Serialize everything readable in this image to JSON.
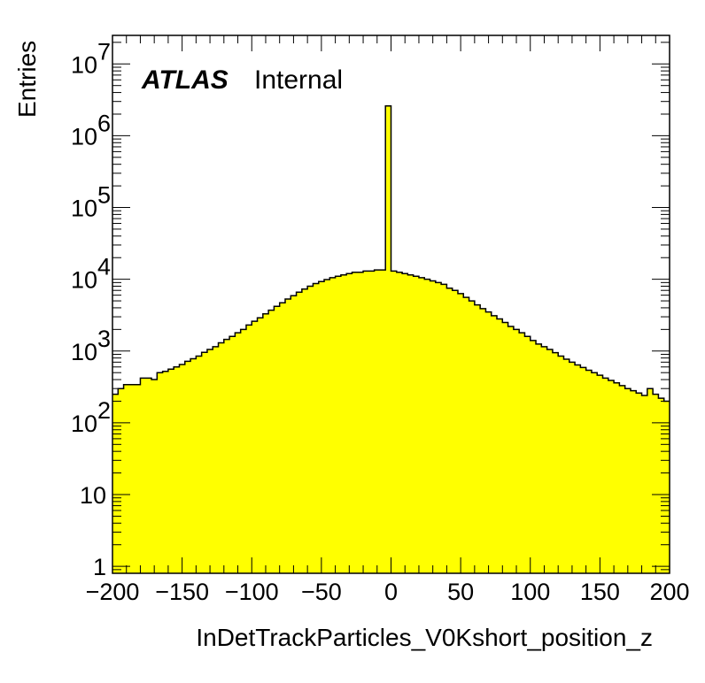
{
  "chart_data": {
    "type": "bar",
    "style": "filled-histogram",
    "fill_color": "#ffff00",
    "line_color": "#000000",
    "xlabel": "InDetTrackParticles_V0Kshort_position_z",
    "ylabel": "Entries",
    "xlim": [
      -200,
      200
    ],
    "ylim": [
      0.8,
      25000000
    ],
    "yscale": "log",
    "grid": false,
    "legend": "none",
    "bin_width": 4,
    "x_ticks": [
      "−200",
      "−150",
      "−100",
      "−50",
      "0",
      "50",
      "100",
      "150",
      "200"
    ],
    "x_tick_values": [
      -200,
      -150,
      -100,
      -50,
      0,
      50,
      100,
      150,
      200
    ],
    "y_ticks": [
      {
        "value": 1,
        "base": "1",
        "exp": ""
      },
      {
        "value": 10,
        "base": "10",
        "exp": ""
      },
      {
        "value": 100,
        "base": "10",
        "exp": "2"
      },
      {
        "value": 1000,
        "base": "10",
        "exp": "3"
      },
      {
        "value": 10000,
        "base": "10",
        "exp": "4"
      },
      {
        "value": 100000,
        "base": "10",
        "exp": "5"
      },
      {
        "value": 1000000,
        "base": "10",
        "exp": "6"
      },
      {
        "value": 10000000,
        "base": "10",
        "exp": "7"
      }
    ],
    "x": [
      -198,
      -194,
      -190,
      -186,
      -182,
      -178,
      -174,
      -170,
      -166,
      -162,
      -158,
      -154,
      -150,
      -146,
      -142,
      -138,
      -134,
      -130,
      -126,
      -122,
      -118,
      -114,
      -110,
      -106,
      -102,
      -98,
      -94,
      -90,
      -86,
      -82,
      -78,
      -74,
      -70,
      -66,
      -62,
      -58,
      -54,
      -50,
      -46,
      -42,
      -38,
      -34,
      -30,
      -26,
      -22,
      -18,
      -14,
      -10,
      -6,
      -2,
      2,
      6,
      10,
      14,
      18,
      22,
      26,
      30,
      34,
      38,
      42,
      46,
      50,
      54,
      58,
      62,
      66,
      70,
      74,
      78,
      82,
      86,
      90,
      94,
      98,
      102,
      106,
      110,
      114,
      118,
      122,
      126,
      130,
      134,
      138,
      142,
      146,
      150,
      154,
      158,
      162,
      166,
      170,
      174,
      178,
      182,
      186,
      190,
      194,
      198
    ],
    "values": [
      250,
      300,
      340,
      340,
      340,
      420,
      420,
      400,
      500,
      520,
      560,
      600,
      650,
      720,
      780,
      850,
      960,
      1050,
      1150,
      1300,
      1450,
      1600,
      1800,
      2000,
      2300,
      2600,
      2900,
      3300,
      3700,
      4200,
      4700,
      5300,
      5900,
      6600,
      7300,
      8000,
      8700,
      9300,
      9900,
      10500,
      11000,
      11500,
      12000,
      12500,
      12500,
      13000,
      13000,
      13500,
      13500,
      2600000,
      13000,
      12500,
      12000,
      11500,
      11000,
      10500,
      10000,
      9500,
      9000,
      8500,
      7500,
      7000,
      6300,
      5600,
      5000,
      4400,
      3900,
      3500,
      3100,
      2800,
      2500,
      2200,
      2000,
      1800,
      1600,
      1400,
      1250,
      1150,
      1050,
      950,
      850,
      770,
      700,
      640,
      590,
      540,
      500,
      460,
      420,
      390,
      360,
      330,
      300,
      280,
      260,
      240,
      300,
      250,
      220,
      200
    ],
    "annotations": {
      "atlas": "ATLAS",
      "status": "Internal"
    }
  }
}
